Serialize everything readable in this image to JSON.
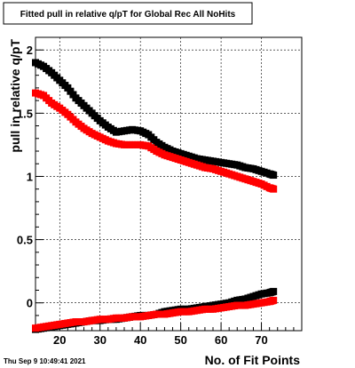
{
  "chart_data": {
    "type": "scatter",
    "title": "Fitted pull in relative q/pT for Global Rec All NoHits",
    "xlabel": "No. of Fit Points",
    "ylabel": "pull in relative q/pT",
    "xlim": [
      14,
      80
    ],
    "ylim": [
      -0.22,
      2.1
    ],
    "x_ticks": [
      20,
      30,
      40,
      50,
      60,
      70
    ],
    "y_ticks": [
      0,
      0.5,
      1,
      1.5,
      2
    ],
    "y_tick_labels": [
      "0",
      "0.5",
      "1",
      "1.5",
      "2"
    ],
    "grid": true,
    "series": [
      {
        "color": "#000000",
        "x": [
          14,
          16,
          18,
          20,
          22,
          24,
          26,
          28,
          30,
          32,
          34,
          36,
          38,
          40,
          42,
          44,
          46,
          48,
          50,
          52,
          54,
          56,
          58,
          60,
          62,
          64,
          66,
          68,
          70,
          72,
          73
        ],
        "y": [
          1.9,
          1.87,
          1.82,
          1.76,
          1.7,
          1.62,
          1.56,
          1.5,
          1.44,
          1.39,
          1.35,
          1.36,
          1.37,
          1.36,
          1.33,
          1.27,
          1.23,
          1.2,
          1.18,
          1.16,
          1.14,
          1.13,
          1.12,
          1.11,
          1.1,
          1.09,
          1.07,
          1.06,
          1.04,
          1.02,
          1.01
        ]
      },
      {
        "color": "#ff0000",
        "x": [
          14,
          16,
          18,
          20,
          22,
          24,
          26,
          28,
          30,
          32,
          34,
          36,
          38,
          40,
          42,
          44,
          46,
          48,
          50,
          52,
          54,
          56,
          58,
          60,
          62,
          64,
          66,
          68,
          70,
          72,
          73
        ],
        "y": [
          1.66,
          1.64,
          1.58,
          1.54,
          1.49,
          1.43,
          1.38,
          1.34,
          1.31,
          1.28,
          1.26,
          1.25,
          1.25,
          1.25,
          1.24,
          1.2,
          1.17,
          1.15,
          1.13,
          1.11,
          1.09,
          1.07,
          1.06,
          1.04,
          1.02,
          1.0,
          0.98,
          0.96,
          0.94,
          0.91,
          0.9
        ]
      },
      {
        "color": "#000000",
        "x": [
          14,
          16,
          18,
          20,
          22,
          24,
          26,
          28,
          30,
          32,
          34,
          36,
          38,
          40,
          42,
          44,
          46,
          48,
          50,
          52,
          54,
          56,
          58,
          60,
          62,
          64,
          66,
          68,
          70,
          72,
          73
        ],
        "y": [
          -0.21,
          -0.2,
          -0.19,
          -0.18,
          -0.17,
          -0.16,
          -0.15,
          -0.14,
          -0.14,
          -0.13,
          -0.13,
          -0.12,
          -0.11,
          -0.1,
          -0.1,
          -0.09,
          -0.07,
          -0.06,
          -0.05,
          -0.05,
          -0.04,
          -0.03,
          -0.02,
          -0.01,
          0.0,
          0.02,
          0.03,
          0.05,
          0.07,
          0.08,
          0.09
        ]
      },
      {
        "color": "#ff0000",
        "x": [
          14,
          16,
          18,
          20,
          22,
          24,
          26,
          28,
          30,
          32,
          34,
          36,
          38,
          40,
          42,
          44,
          46,
          48,
          50,
          52,
          54,
          56,
          58,
          60,
          62,
          64,
          66,
          68,
          70,
          72,
          73
        ],
        "y": [
          -0.2,
          -0.19,
          -0.18,
          -0.17,
          -0.16,
          -0.15,
          -0.15,
          -0.14,
          -0.13,
          -0.13,
          -0.12,
          -0.12,
          -0.11,
          -0.11,
          -0.1,
          -0.09,
          -0.09,
          -0.08,
          -0.07,
          -0.07,
          -0.06,
          -0.05,
          -0.05,
          -0.04,
          -0.03,
          -0.02,
          -0.02,
          -0.01,
          0.0,
          0.01,
          0.02
        ]
      }
    ]
  },
  "footer": {
    "timestamp": "Thu Sep  9 10:49:41 2021"
  }
}
